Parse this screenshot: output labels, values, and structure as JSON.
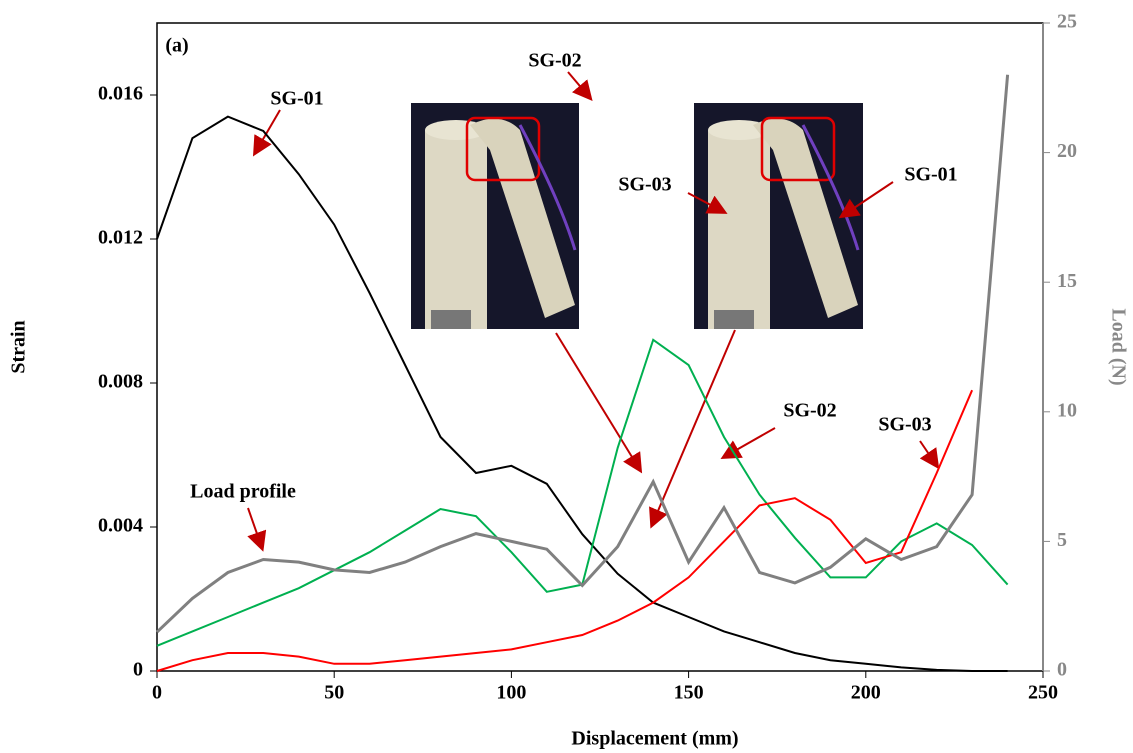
{
  "chart_data": {
    "type": "line",
    "x_label": "Displacement (mm)",
    "y_label": "Strain",
    "y2_label": "Load (N)",
    "x": [
      0,
      10,
      20,
      30,
      40,
      50,
      60,
      70,
      80,
      90,
      100,
      110,
      120,
      130,
      140,
      150,
      160,
      170,
      180,
      190,
      200,
      210,
      220,
      230,
      240
    ],
    "series": [
      {
        "name": "SG-01",
        "color": "#000000",
        "values": [
          0.012,
          0.0148,
          0.0154,
          0.015,
          0.0138,
          0.0124,
          0.0105,
          0.0085,
          0.0065,
          0.0055,
          0.0057,
          0.0052,
          0.0038,
          0.0027,
          0.0019,
          0.0015,
          0.0011,
          0.0008,
          0.0005,
          0.0003,
          0.0002,
          0.0001,
          3e-05,
          0,
          0
        ]
      },
      {
        "name": "SG-02",
        "color": "#00b050",
        "values": [
          0.0007,
          0.0011,
          0.0015,
          0.0019,
          0.0023,
          0.0028,
          0.0033,
          0.0039,
          0.0045,
          0.0043,
          0.0033,
          0.0022,
          0.0024,
          0.0062,
          0.0092,
          0.0085,
          0.0065,
          0.0049,
          0.0037,
          0.0026,
          0.0026,
          0.0036,
          0.0041,
          0.0035,
          0.0024
        ]
      },
      {
        "name": "SG-03",
        "color": "#ff0000",
        "values": [
          0,
          0.0003,
          0.0005,
          0.0005,
          0.0004,
          0.0002,
          0.0002,
          0.0003,
          0.0004,
          0.0005,
          0.0006,
          0.0008,
          0.001,
          0.0014,
          0.0019,
          0.0026,
          0.0036,
          0.0046,
          0.0048,
          0.0042,
          0.003,
          0.0033,
          0.0055,
          0.0078,
          null
        ]
      },
      {
        "name": "Load profile",
        "color": "#808080",
        "axis": "y2",
        "values": [
          1.5,
          2.8,
          3.8,
          4.3,
          4.2,
          3.9,
          3.8,
          4.2,
          4.8,
          5.3,
          5.0,
          4.7,
          3.3,
          4.8,
          7.3,
          4.2,
          6.3,
          3.8,
          3.4,
          4.0,
          5.1,
          4.3,
          4.8,
          6.8,
          23
        ]
      }
    ],
    "xlim": [
      0,
      250
    ],
    "xticks": [
      0,
      50,
      100,
      150,
      200,
      250
    ],
    "ylim": [
      0,
      0.018
    ],
    "yticks": [
      0,
      0.004,
      0.008,
      0.012,
      0.016
    ],
    "y2lim": [
      0,
      25
    ],
    "y2ticks": [
      0,
      5,
      10,
      15,
      20,
      25
    ],
    "annotations": [
      "(a)",
      "SG-01",
      "SG-02",
      "SG-03",
      "SG-01",
      "SG-02",
      "SG-03",
      "Load profile"
    ]
  }
}
